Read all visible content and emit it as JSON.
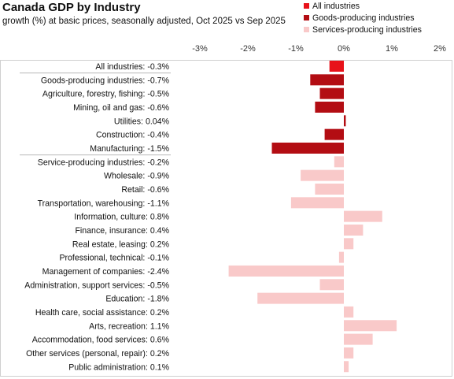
{
  "chart_data": {
    "type": "bar",
    "orientation": "horizontal",
    "title": "Canada GDP by Industry",
    "subtitle": "growth (%) at basic prices, seasonally  adjusted, Oct 2025 vs Sep 2025",
    "xlim": [
      -3,
      2
    ],
    "xticks": [
      "-3%",
      "-2%",
      "-1%",
      "0%",
      "1%",
      "2%"
    ],
    "xtick_values": [
      -3,
      -2,
      -1,
      0,
      1,
      2
    ],
    "grid": false,
    "legend_position": "top-right",
    "series": [
      {
        "name": "All industries",
        "color": "#e8121a"
      },
      {
        "name": "Goods-producing industries",
        "color": "#b30d13"
      },
      {
        "name": "Services-producing industries",
        "color": "#f9c9c9"
      }
    ],
    "bars": [
      {
        "label": "All industries: -0.3%",
        "value": -0.3,
        "series": 0,
        "group_separator": false
      },
      {
        "label": "Goods-producing industries: -0.7%",
        "value": -0.7,
        "series": 1,
        "group_separator": true
      },
      {
        "label": "Agriculture, forestry, fishing: -0.5%",
        "value": -0.5,
        "series": 1,
        "group_separator": false
      },
      {
        "label": "Mining, oil and gas: -0.6%",
        "value": -0.6,
        "series": 1,
        "group_separator": false
      },
      {
        "label": "Utilities: 0.04%",
        "value": 0.04,
        "series": 1,
        "group_separator": false
      },
      {
        "label": "Construction: -0.4%",
        "value": -0.4,
        "series": 1,
        "group_separator": false
      },
      {
        "label": "Manufacturing: -1.5%",
        "value": -1.5,
        "series": 1,
        "group_separator": false
      },
      {
        "label": "Service-producing industries: -0.2%",
        "value": -0.2,
        "series": 2,
        "group_separator": true
      },
      {
        "label": "Wholesale: -0.9%",
        "value": -0.9,
        "series": 2,
        "group_separator": false
      },
      {
        "label": "Retail: -0.6%",
        "value": -0.6,
        "series": 2,
        "group_separator": false
      },
      {
        "label": "Transportation, warehousing: -1.1%",
        "value": -1.1,
        "series": 2,
        "group_separator": false
      },
      {
        "label": "Information, culture: 0.8%",
        "value": 0.8,
        "series": 2,
        "group_separator": false
      },
      {
        "label": "Finance, insurance: 0.4%",
        "value": 0.4,
        "series": 2,
        "group_separator": false
      },
      {
        "label": "Real estate, leasing: 0.2%",
        "value": 0.2,
        "series": 2,
        "group_separator": false
      },
      {
        "label": "Professional, technical: -0.1%",
        "value": -0.1,
        "series": 2,
        "group_separator": false
      },
      {
        "label": "Management of companies: -2.4%",
        "value": -2.4,
        "series": 2,
        "group_separator": false
      },
      {
        "label": "Administration, support services: -0.5%",
        "value": -0.5,
        "series": 2,
        "group_separator": false
      },
      {
        "label": "Education: -1.8%",
        "value": -1.8,
        "series": 2,
        "group_separator": false
      },
      {
        "label": "Health care, social assistance: 0.2%",
        "value": 0.2,
        "series": 2,
        "group_separator": false
      },
      {
        "label": "Arts, recreation: 1.1%",
        "value": 1.1,
        "series": 2,
        "group_separator": false
      },
      {
        "label": "Accommodation, food services: 0.6%",
        "value": 0.6,
        "series": 2,
        "group_separator": false
      },
      {
        "label": "Other services (personal, repair): 0.2%",
        "value": 0.2,
        "series": 2,
        "group_separator": false
      },
      {
        "label": "Public administration: 0.1%",
        "value": 0.1,
        "series": 2,
        "group_separator": false
      }
    ]
  }
}
